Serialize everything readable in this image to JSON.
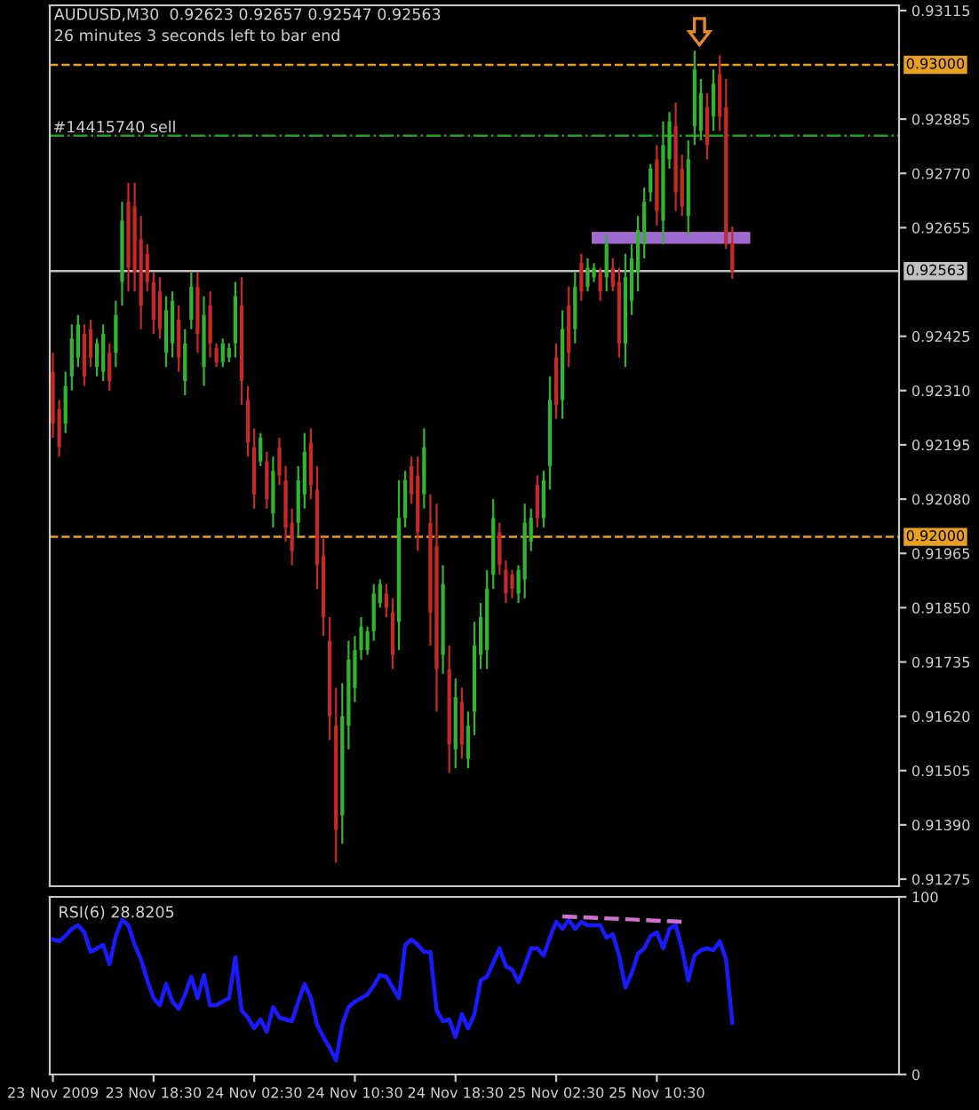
{
  "chart_data": [
    {
      "type": "candlestick",
      "annotations": [
        "AUDUSD,M30  0.92623 0.92657 0.92547 0.92563",
        "26 minutes 3 seconds left to bar end",
        {
          "text": "#14415740 sell",
          "x": "2009-11-23T10:30",
          "y": 0.9285
        }
      ],
      "x": [
        "2009-11-23T10:30",
        "2009-11-23T11:00",
        "2009-11-23T11:30",
        "2009-11-23T12:00",
        "2009-11-23T12:30",
        "2009-11-23T13:00",
        "2009-11-23T13:30",
        "2009-11-23T14:00",
        "2009-11-23T14:30",
        "2009-11-23T15:00",
        "2009-11-23T15:30",
        "2009-11-23T16:00",
        "2009-11-23T16:30",
        "2009-11-23T17:00",
        "2009-11-23T17:30",
        "2009-11-23T18:00",
        "2009-11-23T18:30",
        "2009-11-23T19:00",
        "2009-11-23T19:30",
        "2009-11-23T20:00",
        "2009-11-23T20:30",
        "2009-11-23T21:00",
        "2009-11-23T21:30",
        "2009-11-23T22:00",
        "2009-11-23T22:30",
        "2009-11-23T23:00",
        "2009-11-23T23:30",
        "2009-11-24T00:00",
        "2009-11-24T00:30",
        "2009-11-24T01:00",
        "2009-11-24T01:30",
        "2009-11-24T02:00",
        "2009-11-24T02:30",
        "2009-11-24T03:00",
        "2009-11-24T03:30",
        "2009-11-24T04:00",
        "2009-11-24T04:30",
        "2009-11-24T05:00",
        "2009-11-24T05:30",
        "2009-11-24T06:00",
        "2009-11-24T06:30",
        "2009-11-24T07:00",
        "2009-11-24T07:30",
        "2009-11-24T08:00",
        "2009-11-24T08:30",
        "2009-11-24T09:00",
        "2009-11-24T09:30",
        "2009-11-24T10:00",
        "2009-11-24T10:30",
        "2009-11-24T11:00",
        "2009-11-24T11:30",
        "2009-11-24T12:00",
        "2009-11-24T12:30",
        "2009-11-24T13:00",
        "2009-11-24T13:30",
        "2009-11-24T14:00",
        "2009-11-24T14:30",
        "2009-11-24T15:00",
        "2009-11-24T15:30",
        "2009-11-24T16:00",
        "2009-11-24T16:30",
        "2009-11-24T17:00",
        "2009-11-24T17:30",
        "2009-11-24T18:00",
        "2009-11-24T18:30",
        "2009-11-24T19:00",
        "2009-11-24T19:30",
        "2009-11-24T20:00",
        "2009-11-24T20:30",
        "2009-11-24T21:00",
        "2009-11-24T21:30",
        "2009-11-24T22:00",
        "2009-11-24T22:30",
        "2009-11-24T23:00",
        "2009-11-24T23:30",
        "2009-11-25T00:00",
        "2009-11-25T00:30",
        "2009-11-25T01:00",
        "2009-11-25T01:30",
        "2009-11-25T02:00",
        "2009-11-25T02:30",
        "2009-11-25T03:00",
        "2009-11-25T03:30",
        "2009-11-25T04:00",
        "2009-11-25T04:30",
        "2009-11-25T05:00",
        "2009-11-25T05:30",
        "2009-11-25T06:00",
        "2009-11-25T06:30",
        "2009-11-25T07:00",
        "2009-11-25T07:30",
        "2009-11-25T08:00",
        "2009-11-25T08:30",
        "2009-11-25T09:00",
        "2009-11-25T09:30",
        "2009-11-25T10:00",
        "2009-11-25T10:30",
        "2009-11-25T11:00",
        "2009-11-25T11:30",
        "2009-11-25T12:00",
        "2009-11-25T12:30",
        "2009-11-25T13:00",
        "2009-11-25T13:30",
        "2009-11-25T14:00",
        "2009-11-25T14:30",
        "2009-11-25T15:00",
        "2009-11-25T15:30",
        "2009-11-25T16:00",
        "2009-11-25T16:30"
      ],
      "ohlc": [
        [
          0.9235,
          0.9239,
          0.9221,
          0.9224
        ],
        [
          0.9227,
          0.9229,
          0.9217,
          0.9219
        ],
        [
          0.9224,
          0.9235,
          0.9222,
          0.9232
        ],
        [
          0.9234,
          0.9245,
          0.9231,
          0.9242
        ],
        [
          0.9238,
          0.9247,
          0.9236,
          0.9245
        ],
        [
          0.9243,
          0.9245,
          0.9232,
          0.9234
        ],
        [
          0.9244,
          0.9246,
          0.9236,
          0.9238
        ],
        [
          0.9236,
          0.9242,
          0.9234,
          0.9241
        ],
        [
          0.9235,
          0.9245,
          0.9233,
          0.9243
        ],
        [
          0.9239,
          0.9241,
          0.9231,
          0.9233
        ],
        [
          0.9239,
          0.925,
          0.9236,
          0.9247
        ],
        [
          0.9254,
          0.9271,
          0.9249,
          0.9267
        ],
        [
          0.9271,
          0.9275,
          0.9252,
          0.9257
        ],
        [
          0.927,
          0.9275,
          0.9252,
          0.9256
        ],
        [
          0.9263,
          0.9268,
          0.9244,
          0.9249
        ],
        [
          0.926,
          0.9262,
          0.9252,
          0.9254
        ],
        [
          0.9254,
          0.9256,
          0.9243,
          0.9246
        ],
        [
          0.9252,
          0.9255,
          0.9242,
          0.9244
        ],
        [
          0.9239,
          0.9251,
          0.9236,
          0.9248
        ],
        [
          0.9241,
          0.9252,
          0.9238,
          0.925
        ],
        [
          0.9246,
          0.9249,
          0.9235,
          0.9238
        ],
        [
          0.9233,
          0.9244,
          0.923,
          0.9241
        ],
        [
          0.9246,
          0.9256,
          0.9244,
          0.9253
        ],
        [
          0.9253,
          0.9256,
          0.9239,
          0.9243
        ],
        [
          0.9236,
          0.9251,
          0.9232,
          0.9247
        ],
        [
          0.9249,
          0.9252,
          0.9238,
          0.9241
        ],
        [
          0.924,
          0.9241,
          0.9236,
          0.9237
        ],
        [
          0.9237,
          0.9242,
          0.9236,
          0.9241
        ],
        [
          0.9238,
          0.9241,
          0.9237,
          0.924
        ],
        [
          0.9241,
          0.9254,
          0.9238,
          0.9251
        ],
        [
          0.9249,
          0.9255,
          0.9228,
          0.9233
        ],
        [
          0.9229,
          0.9232,
          0.9217,
          0.922
        ],
        [
          0.9219,
          0.9223,
          0.9206,
          0.9209
        ],
        [
          0.9216,
          0.9222,
          0.9215,
          0.9221
        ],
        [
          0.9216,
          0.9218,
          0.9206,
          0.9208
        ],
        [
          0.9205,
          0.9217,
          0.9202,
          0.9214
        ],
        [
          0.9219,
          0.9221,
          0.9211,
          0.9213
        ],
        [
          0.9212,
          0.9215,
          0.9199,
          0.9202
        ],
        [
          0.9203,
          0.9206,
          0.9194,
          0.9197
        ],
        [
          0.9203,
          0.9215,
          0.92,
          0.9212
        ],
        [
          0.9209,
          0.9222,
          0.9206,
          0.9218
        ],
        [
          0.922,
          0.9223,
          0.9208,
          0.9211
        ],
        [
          0.921,
          0.9215,
          0.9189,
          0.9194
        ],
        [
          0.9196,
          0.92,
          0.9179,
          0.9183
        ],
        [
          0.9178,
          0.9183,
          0.9157,
          0.9162
        ],
        [
          0.916,
          0.9168,
          0.9131,
          0.9138
        ],
        [
          0.9141,
          0.9169,
          0.9135,
          0.9162
        ],
        [
          0.916,
          0.9178,
          0.9155,
          0.9174
        ],
        [
          0.9168,
          0.9179,
          0.9165,
          0.9176
        ],
        [
          0.9176,
          0.9183,
          0.9174,
          0.9181
        ],
        [
          0.9176,
          0.9181,
          0.9175,
          0.918
        ],
        [
          0.918,
          0.919,
          0.9178,
          0.9188
        ],
        [
          0.9186,
          0.9191,
          0.9185,
          0.919
        ],
        [
          0.9188,
          0.919,
          0.9183,
          0.9185
        ],
        [
          0.9184,
          0.9187,
          0.9172,
          0.9175
        ],
        [
          0.9182,
          0.9212,
          0.9176,
          0.9204
        ],
        [
          0.9204,
          0.9214,
          0.9202,
          0.9212
        ],
        [
          0.9215,
          0.9217,
          0.9207,
          0.9209
        ],
        [
          0.9213,
          0.9217,
          0.9197,
          0.9201
        ],
        [
          0.9209,
          0.9223,
          0.9206,
          0.9219
        ],
        [
          0.9203,
          0.9209,
          0.9177,
          0.9184
        ],
        [
          0.9198,
          0.9207,
          0.9163,
          0.9172
        ],
        [
          0.9175,
          0.9194,
          0.9171,
          0.919
        ],
        [
          0.9172,
          0.9177,
          0.915,
          0.9156
        ],
        [
          0.9155,
          0.917,
          0.9151,
          0.9166
        ],
        [
          0.9165,
          0.9168,
          0.9153,
          0.9156
        ],
        [
          0.9153,
          0.9163,
          0.9151,
          0.916
        ],
        [
          0.9163,
          0.9182,
          0.9158,
          0.9177
        ],
        [
          0.9175,
          0.9186,
          0.9172,
          0.9183
        ],
        [
          0.9176,
          0.9193,
          0.9172,
          0.9189
        ],
        [
          0.9192,
          0.9208,
          0.9189,
          0.9204
        ],
        [
          0.9201,
          0.9203,
          0.9192,
          0.9194
        ],
        [
          0.9193,
          0.9195,
          0.9186,
          0.9188
        ],
        [
          0.9192,
          0.9193,
          0.9187,
          0.9189
        ],
        [
          0.9188,
          0.9194,
          0.9186,
          0.9193
        ],
        [
          0.9191,
          0.9207,
          0.9187,
          0.9203
        ],
        [
          0.9199,
          0.9206,
          0.9197,
          0.9204
        ],
        [
          0.9211,
          0.9213,
          0.9202,
          0.9204
        ],
        [
          0.9204,
          0.9214,
          0.9202,
          0.9212
        ],
        [
          0.9215,
          0.9234,
          0.921,
          0.9229
        ],
        [
          0.9238,
          0.9241,
          0.9225,
          0.9228
        ],
        [
          0.9229,
          0.9248,
          0.9225,
          0.9244
        ],
        [
          0.9249,
          0.9253,
          0.9236,
          0.9239
        ],
        [
          0.9244,
          0.9256,
          0.9241,
          0.9253
        ],
        [
          0.9258,
          0.926,
          0.925,
          0.9252
        ],
        [
          0.9253,
          0.9259,
          0.9252,
          0.9257
        ],
        [
          0.9255,
          0.9258,
          0.9254,
          0.9257
        ],
        [
          0.9256,
          0.9257,
          0.925,
          0.9252
        ],
        [
          0.9255,
          0.9264,
          0.9252,
          0.9262
        ],
        [
          0.9257,
          0.9259,
          0.9252,
          0.9253
        ],
        [
          0.9254,
          0.9257,
          0.9238,
          0.9241
        ],
        [
          0.9241,
          0.926,
          0.9236,
          0.9255
        ],
        [
          0.925,
          0.9262,
          0.9247,
          0.9259
        ],
        [
          0.9256,
          0.9268,
          0.9252,
          0.9265
        ],
        [
          0.9262,
          0.9274,
          0.9259,
          0.9271
        ],
        [
          0.9273,
          0.9279,
          0.9271,
          0.9278
        ],
        [
          0.928,
          0.9283,
          0.9266,
          0.9269
        ],
        [
          0.9267,
          0.9288,
          0.9262,
          0.9283
        ],
        [
          0.928,
          0.929,
          0.9278,
          0.9288
        ],
        [
          0.9287,
          0.9292,
          0.9269,
          0.9273
        ],
        [
          0.9278,
          0.9281,
          0.9268,
          0.927
        ],
        [
          0.9268,
          0.9284,
          0.9264,
          0.928
        ],
        [
          0.9287,
          0.9303,
          0.9283,
          0.9299
        ],
        [
          0.9286,
          0.9297,
          0.9284,
          0.9294
        ],
        [
          0.9291,
          0.9294,
          0.928,
          0.9283
        ],
        [
          0.9289,
          0.9299,
          0.9286,
          0.9296
        ],
        [
          0.9298,
          0.9302,
          0.9286,
          0.9289
        ],
        [
          0.9291,
          0.9297,
          0.9261,
          0.9262
        ],
        [
          0.92623,
          0.92657,
          0.92547,
          0.92563
        ]
      ],
      "colors": [
        "#c82828",
        "#c82828",
        "#2fb52f",
        "#2fb52f",
        "#2fb52f",
        "#c82828",
        "#c82828",
        "#2fb52f",
        "#2fb52f",
        "#c82828",
        "#2fb52f",
        "#2fb52f",
        "#c82828",
        "#c82828",
        "#c82828",
        "#c82828",
        "#c82828",
        "#c82828",
        "#2fb52f",
        "#2fb52f",
        "#c82828",
        "#2fb52f",
        "#2fb52f",
        "#c82828",
        "#2fb52f",
        "#c82828",
        "#c82828",
        "#2fb52f",
        "#2fb52f",
        "#2fb52f",
        "#c82828",
        "#c82828",
        "#c82828",
        "#2fb52f",
        "#c82828",
        "#2fb52f",
        "#c82828",
        "#c82828",
        "#c82828",
        "#2fb52f",
        "#2fb52f",
        "#c82828",
        "#c82828",
        "#c82828",
        "#c82828",
        "#c82828",
        "#2fb52f",
        "#2fb52f",
        "#2fb52f",
        "#2fb52f",
        "#2fb52f",
        "#2fb52f",
        "#2fb52f",
        "#c82828",
        "#c82828",
        "#2fb52f",
        "#2fb52f",
        "#c82828",
        "#c82828",
        "#2fb52f",
        "#c82828",
        "#c82828",
        "#2fb52f",
        "#c82828",
        "#2fb52f",
        "#c82828",
        "#2fb52f",
        "#2fb52f",
        "#2fb52f",
        "#2fb52f",
        "#2fb52f",
        "#c82828",
        "#c82828",
        "#c82828",
        "#2fb52f",
        "#2fb52f",
        "#2fb52f",
        "#c82828",
        "#2fb52f",
        "#2fb52f",
        "#c82828",
        "#2fb52f",
        "#c82828",
        "#2fb52f",
        "#c82828",
        "#2fb52f",
        "#2fb52f",
        "#c82828",
        "#2fb52f",
        "#c82828",
        "#c82828",
        "#2fb52f",
        "#2fb52f",
        "#2fb52f",
        "#2fb52f",
        "#2fb52f",
        "#c82828",
        "#2fb52f",
        "#2fb52f",
        "#c82828",
        "#c82828",
        "#2fb52f",
        "#2fb52f",
        "#2fb52f",
        "#c82828",
        "#2fb52f",
        "#c82828",
        "#c82828",
        "#c82828"
      ],
      "xlim": [
        "2009-11-23T10:15",
        "2009-11-26T05:45"
      ],
      "ylim": [
        0.9126,
        0.93126
      ],
      "yticks": [
        0.93115,
        0.92885,
        {
          "value": 0.9277,
          "label": "0.92770"
        },
        0.92655,
        0.92425,
        {
          "value": 0.9231,
          "label": "0.92310"
        },
        0.92195,
        {
          "value": 0.9208,
          "label": "0.92080"
        },
        0.91965,
        {
          "value": 0.9185,
          "label": "0.91850"
        },
        0.91735,
        {
          "value": 0.9162,
          "label": "0.91620"
        },
        0.91505,
        {
          "value": 0.9139,
          "label": "0.91390"
        },
        0.91275
      ],
      "tick_labels": "y",
      "ref_lines": [
        {
          "axis": "y",
          "value": 0.93,
          "label": "0.93000",
          "color": "#e8a020",
          "line_style": "dashed"
        },
        {
          "axis": "y",
          "value": 0.92,
          "label": "0.92000",
          "color": "#e8a020",
          "line_style": "dashed"
        },
        {
          "axis": "y",
          "value": 0.92563,
          "label": "0.92563",
          "color": "#c0c0c0",
          "line_style": "solid"
        },
        {
          "axis": "y",
          "value": 0.9285,
          "color": "#22a022",
          "line_style": "dashdot"
        }
      ]
    },
    {
      "type": "line",
      "title": "RSI(6) 28.8205",
      "x": [
        "2009-11-23T10:30",
        "2009-11-23T11:00",
        "2009-11-23T11:30",
        "2009-11-23T12:00",
        "2009-11-23T12:30",
        "2009-11-23T13:00",
        "2009-11-23T13:30",
        "2009-11-23T14:00",
        "2009-11-23T14:30",
        "2009-11-23T15:00",
        "2009-11-23T15:30",
        "2009-11-23T16:00",
        "2009-11-23T16:30",
        "2009-11-23T17:00",
        "2009-11-23T17:30",
        "2009-11-23T18:00",
        "2009-11-23T18:30",
        "2009-11-23T19:00",
        "2009-11-23T19:30",
        "2009-11-23T20:00",
        "2009-11-23T20:30",
        "2009-11-23T21:00",
        "2009-11-23T21:30",
        "2009-11-23T22:00",
        "2009-11-23T22:30",
        "2009-11-23T23:00",
        "2009-11-23T23:30",
        "2009-11-24T00:00",
        "2009-11-24T00:30",
        "2009-11-24T01:00",
        "2009-11-24T01:30",
        "2009-11-24T02:00",
        "2009-11-24T02:30",
        "2009-11-24T03:00",
        "2009-11-24T03:30",
        "2009-11-24T04:00",
        "2009-11-24T04:30",
        "2009-11-24T05:00",
        "2009-11-24T05:30",
        "2009-11-24T06:00",
        "2009-11-24T06:30",
        "2009-11-24T07:00",
        "2009-11-24T07:30",
        "2009-11-24T08:00",
        "2009-11-24T08:30",
        "2009-11-24T09:00",
        "2009-11-24T09:30",
        "2009-11-24T10:00",
        "2009-11-24T10:30",
        "2009-11-24T11:00",
        "2009-11-24T11:30",
        "2009-11-24T12:00",
        "2009-11-24T12:30",
        "2009-11-24T13:00",
        "2009-11-24T13:30",
        "2009-11-24T14:00",
        "2009-11-24T14:30",
        "2009-11-24T15:00",
        "2009-11-24T15:30",
        "2009-11-24T16:00",
        "2009-11-24T16:30",
        "2009-11-24T17:00",
        "2009-11-24T17:30",
        "2009-11-24T18:00",
        "2009-11-24T18:30",
        "2009-11-24T19:00",
        "2009-11-24T19:30",
        "2009-11-24T20:00",
        "2009-11-24T20:30",
        "2009-11-24T21:00",
        "2009-11-24T21:30",
        "2009-11-24T22:00",
        "2009-11-24T22:30",
        "2009-11-24T23:00",
        "2009-11-24T23:30",
        "2009-11-25T00:00",
        "2009-11-25T00:30",
        "2009-11-25T01:00",
        "2009-11-25T01:30",
        "2009-11-25T02:00",
        "2009-11-25T02:30",
        "2009-11-25T03:00",
        "2009-11-25T03:30",
        "2009-11-25T04:00",
        "2009-11-25T04:30",
        "2009-11-25T05:00",
        "2009-11-25T05:30",
        "2009-11-25T06:00",
        "2009-11-25T06:30",
        "2009-11-25T07:00",
        "2009-11-25T07:30",
        "2009-11-25T08:00",
        "2009-11-25T08:30",
        "2009-11-25T09:00",
        "2009-11-25T09:30",
        "2009-11-25T10:00",
        "2009-11-25T10:30",
        "2009-11-25T11:00",
        "2009-11-25T11:30",
        "2009-11-25T12:00",
        "2009-11-25T12:30",
        "2009-11-25T13:00",
        "2009-11-25T13:30",
        "2009-11-25T14:00",
        "2009-11-25T14:30",
        "2009-11-25T15:00",
        "2009-11-25T15:30",
        "2009-11-25T16:00",
        "2009-11-25T16:30"
      ],
      "series": [
        {
          "color": "#1a1aff",
          "values": [
            76,
            75,
            78,
            82,
            84,
            80,
            69,
            71,
            73,
            62,
            78,
            87,
            84,
            73,
            65,
            53,
            43,
            39,
            51,
            41,
            37,
            45,
            55,
            43,
            56,
            39,
            39,
            41,
            43,
            66,
            36,
            32,
            26,
            31,
            24,
            38,
            32,
            31,
            30,
            41,
            51,
            43,
            28,
            21,
            15,
            8,
            28,
            38,
            41,
            43,
            45,
            50,
            56,
            55,
            49,
            43,
            73,
            76,
            73,
            69,
            69,
            36,
            30,
            31,
            21,
            34,
            26,
            34,
            53,
            55,
            63,
            71,
            61,
            59,
            52,
            61,
            71,
            71,
            67,
            77,
            86,
            82,
            87,
            82,
            86,
            84,
            84,
            84,
            77,
            79,
            67,
            49,
            57,
            68,
            71,
            78,
            80,
            71,
            82,
            84,
            71,
            53,
            67,
            70,
            71,
            70,
            75,
            65,
            29
          ]
        },
        {
          "type": "line",
          "color": "#d070d0",
          "line_style": "dashed",
          "x": [
            "2009-11-25T03:00",
            "2009-11-25T12:30"
          ],
          "values": [
            89,
            86
          ]
        }
      ],
      "xlim": [
        "2009-11-23T10:15",
        "2009-11-26T05:45"
      ],
      "xticks": [
        {
          "value": "2009-11-23T10:30",
          "label": "23 Nov 2009"
        },
        {
          "value": "2009-11-23T18:30",
          "label": "23 Nov 18:30"
        },
        {
          "value": "2009-11-24T02:30",
          "label": "24 Nov 02:30"
        },
        {
          "value": "2009-11-24T10:30",
          "label": "24 Nov 10:30"
        },
        {
          "value": "2009-11-24T18:30",
          "label": "24 Nov 18:30"
        },
        {
          "value": "2009-11-25T02:30",
          "label": "25 Nov 02:30"
        },
        {
          "value": "2009-11-25T10:30",
          "label": "25 Nov 10:30"
        }
      ],
      "ylim": [
        0,
        100
      ],
      "yticks": [
        0,
        100
      ],
      "line_style": "solid"
    }
  ]
}
